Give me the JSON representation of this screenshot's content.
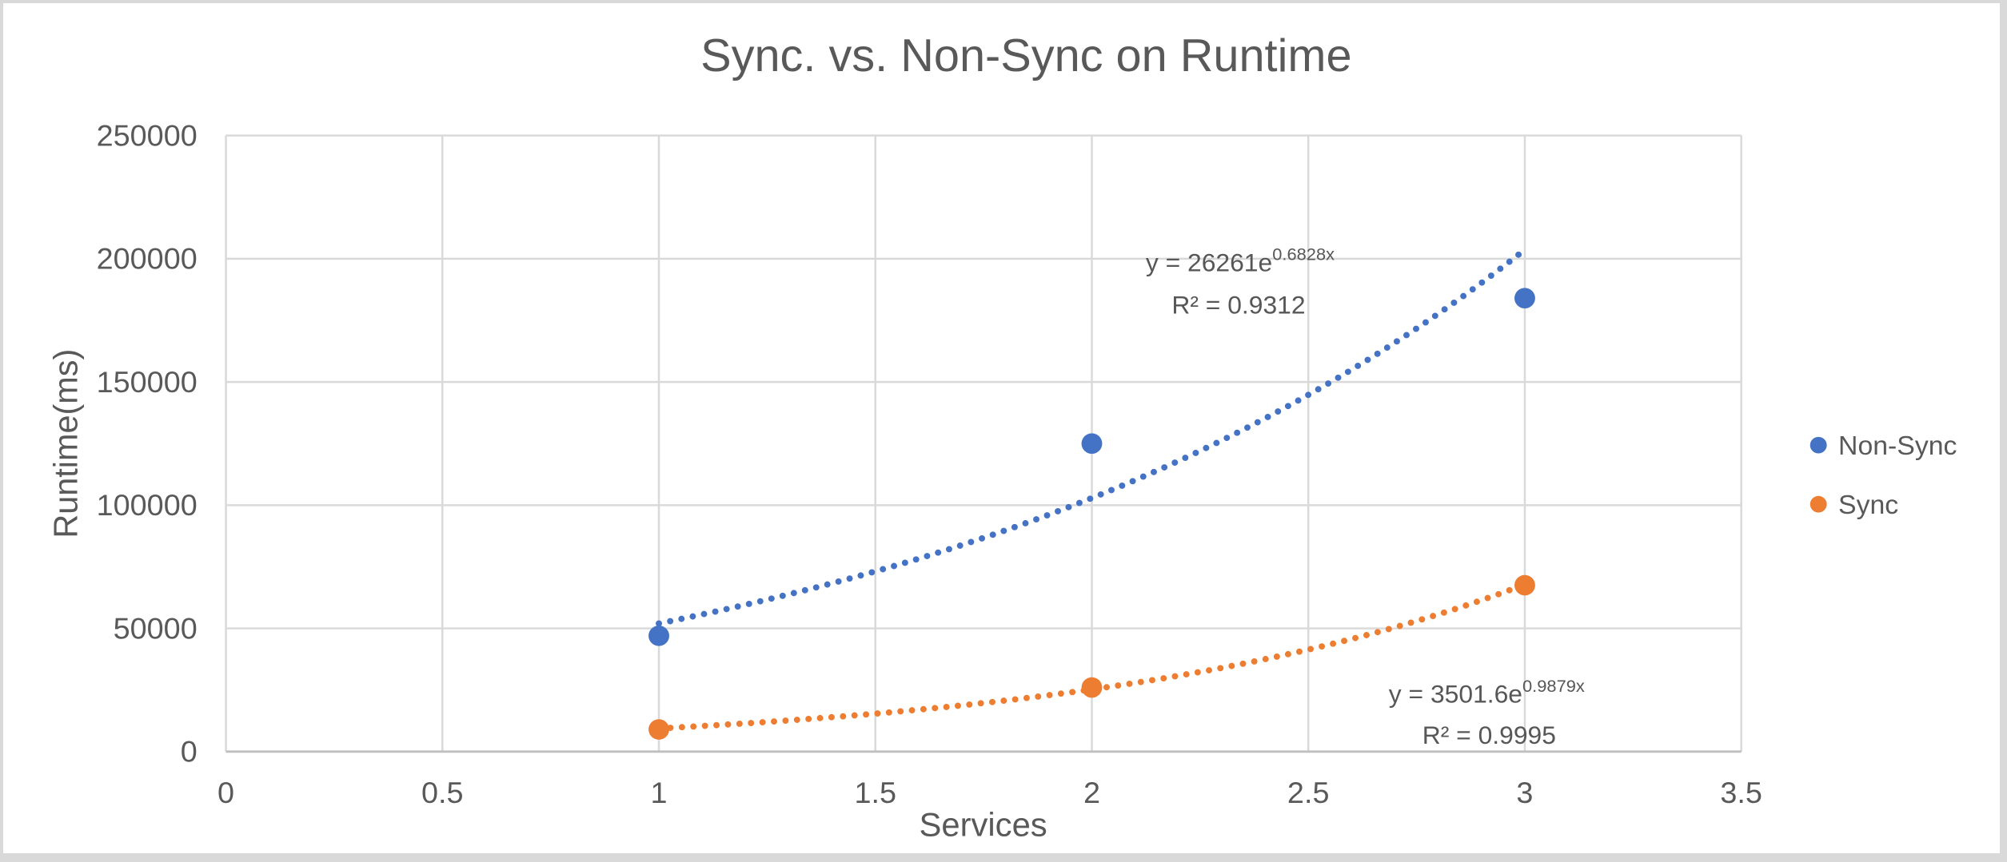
{
  "window": {
    "background": "#ffffff",
    "border_color": "#d9d9d9"
  },
  "chart_data": {
    "type": "scatter",
    "title": "Sync. vs. Non-Sync on  Runtime",
    "xlabel": "Services",
    "ylabel": "Runtime(ms)",
    "xlim": [
      0,
      3.5
    ],
    "ylim": [
      0,
      250000
    ],
    "x_ticks": [
      0,
      0.5,
      1,
      1.5,
      2,
      2.5,
      3,
      3.5
    ],
    "y_ticks": [
      0,
      50000,
      100000,
      150000,
      200000,
      250000
    ],
    "grid": true,
    "legend_position": "right",
    "text_color": "#595959",
    "gridline_color": "#d9d9d9",
    "axisline_color": "#bfbfbf",
    "series": [
      {
        "name": "Non-Sync",
        "color": "#4472C4",
        "x": [
          1,
          2,
          3
        ],
        "y": [
          47000,
          125000,
          184000
        ],
        "trendline": {
          "type": "exponential",
          "a": 26261,
          "b": 0.6828,
          "range": [
            1,
            3
          ],
          "style": "dotted",
          "equation_base": "y = 26261e",
          "equation_exp": "0.6828x",
          "r2_label": "R² = 0.9312"
        }
      },
      {
        "name": "Sync",
        "color": "#ED7D31",
        "x": [
          1,
          2,
          3
        ],
        "y": [
          9000,
          26000,
          67500
        ],
        "trendline": {
          "type": "exponential",
          "a": 3501.6,
          "b": 0.9879,
          "range": [
            1,
            3
          ],
          "style": "dotted",
          "equation_base": "y = 3501.6e",
          "equation_exp": "0.9879x",
          "r2_label": "R² = 0.9995"
        }
      }
    ]
  }
}
